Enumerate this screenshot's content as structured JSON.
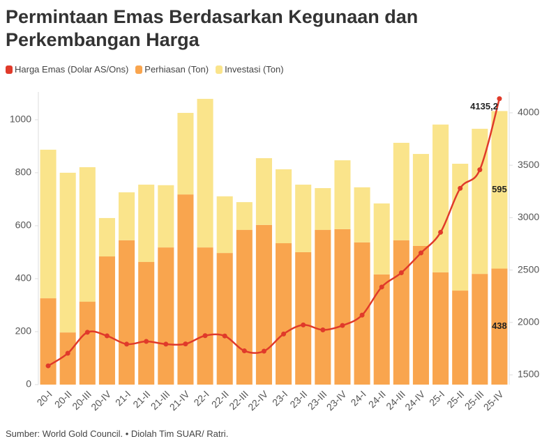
{
  "chart_data": {
    "type": "bar",
    "title": "Permintaan Emas Berdasarkan Kegunaan dan Perkembangan Harga",
    "source": "Sumber: World Gold Council. • Diolah Tim SUAR/ Ratri.",
    "categories": [
      "20-I",
      "20-II",
      "20-III",
      "20-IV",
      "21-I",
      "21-II",
      "21-III",
      "21-IV",
      "22-I",
      "22-II",
      "22-III",
      "22-IV",
      "23-I",
      "23-II",
      "23-III",
      "23-IV",
      "24-I",
      "24-II",
      "24-III",
      "24-IV",
      "25-I",
      "25-II",
      "25-III",
      "25-IV"
    ],
    "series": [
      {
        "name": "Harga Emas (Dolar AS/Ons)",
        "color": "#e03a2a",
        "type": "line",
        "axis": "y2",
        "values": [
          1586,
          1706,
          1906,
          1872,
          1793,
          1819,
          1793,
          1795,
          1874,
          1871,
          1729,
          1726,
          1890,
          1976,
          1929,
          1971,
          2070,
          2338,
          2474,
          2663,
          2860,
          3280,
          3457,
          4135.2
        ],
        "value_labels": [
          null,
          null,
          null,
          null,
          null,
          null,
          null,
          null,
          null,
          null,
          null,
          null,
          null,
          null,
          null,
          null,
          null,
          null,
          null,
          null,
          null,
          null,
          null,
          "4135,2"
        ]
      },
      {
        "name": "Perhiasan (Ton)",
        "color": "#f9a54e",
        "values": [
          326,
          197,
          313,
          484,
          545,
          463,
          518,
          718,
          518,
          497,
          584,
          603,
          534,
          500,
          584,
          587,
          537,
          416,
          545,
          524,
          424,
          355,
          418,
          438
        ]
      },
      {
        "name": "Investasi (Ton)",
        "color": "#fae48b",
        "values": [
          561,
          603,
          508,
          145,
          181,
          292,
          235,
          308,
          561,
          214,
          105,
          252,
          279,
          255,
          158,
          260,
          208,
          268,
          368,
          347,
          558,
          479,
          548,
          595
        ]
      }
    ],
    "ylim": [
      0,
      1105
    ],
    "yticks": [
      0,
      200,
      400,
      600,
      800,
      1000
    ],
    "y2lim": [
      1407,
      4199
    ],
    "y2ticks": [
      1500,
      2000,
      2500,
      3000,
      3500,
      4000
    ],
    "grid": false
  }
}
